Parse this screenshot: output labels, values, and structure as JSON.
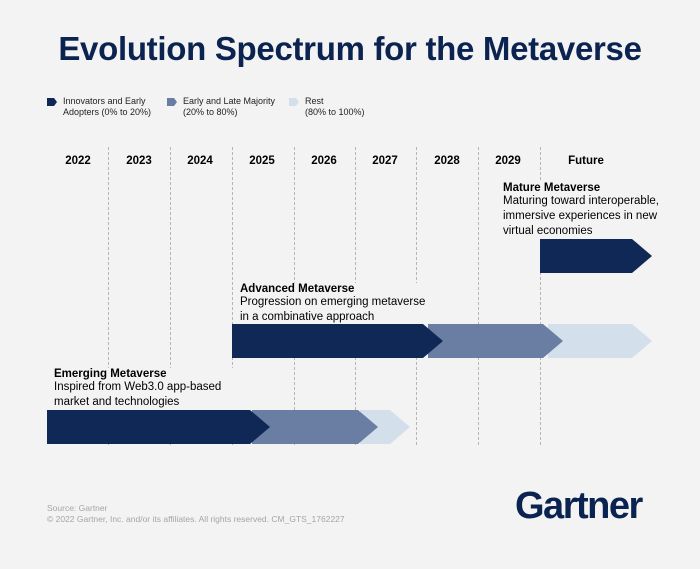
{
  "title": "Evolution Spectrum for the Metaverse",
  "legend": [
    {
      "label": "Innovators and Early Adopters (0% to 20%)",
      "line1": "Innovators and Early",
      "line2": "Adopters (0% to 20%)",
      "color": "#0f2856"
    },
    {
      "label": "Early and Late Majority (20% to 80%)",
      "line1": "Early and Late Majority",
      "line2": "(20% to 80%)",
      "color": "#6a7ea3"
    },
    {
      "label": "Rest (80% to 100%)",
      "line1": "Rest",
      "line2": "(80% to 100%)",
      "color": "#d3dfea"
    }
  ],
  "years": [
    "2022",
    "2023",
    "2024",
    "2025",
    "2026",
    "2027",
    "2028",
    "2029",
    "Future"
  ],
  "stages": [
    {
      "title": "Mature Metaverse",
      "desc1": "Maturing toward interoperable,",
      "desc2": "immersive experiences in new",
      "desc3": "virtual economies",
      "phases": {
        "innovators": "2029–Future"
      }
    },
    {
      "title": "Advanced Metaverse",
      "desc1": "Progression on emerging metaverse",
      "desc2": "in a combinative approach",
      "phases": {
        "innovators": "2025–2028",
        "majority": "2028–2029",
        "rest": "2029–Future"
      }
    },
    {
      "title": "Emerging Metaverse",
      "desc1": "Inspired from Web3.0 app-based",
      "desc2": "market and technologies",
      "phases": {
        "innovators": "2022–2025",
        "majority": "2025–2027",
        "rest": "2027"
      }
    }
  ],
  "footer": {
    "source": "Source: Gartner",
    "copyright": "© 2022 Gartner, Inc. and/or its affiliates. All rights reserved. CM_GTS_1762227"
  },
  "logo": "Gartner"
}
